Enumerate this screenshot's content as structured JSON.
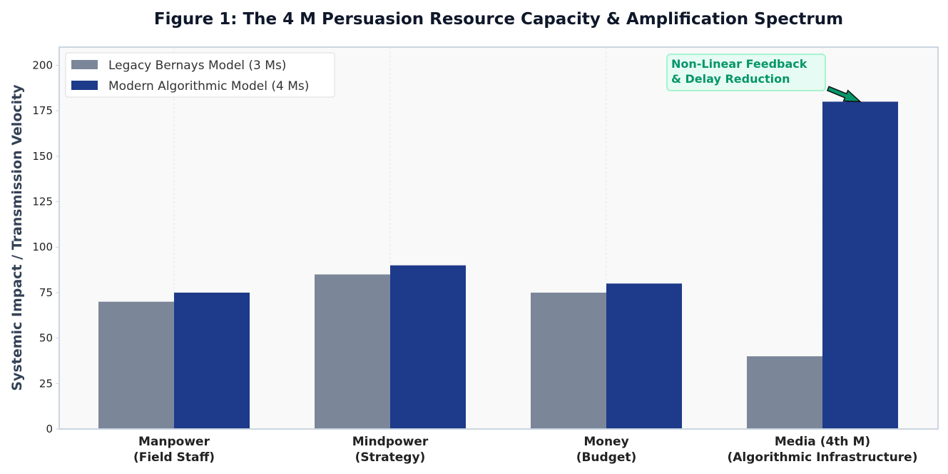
{
  "chart_data": {
    "type": "bar",
    "title": "Figure 1: The 4 M Persuasion Resource Capacity & Amplification Spectrum",
    "xlabel": "",
    "ylabel": "Systemic Impact / Transmission Velocity",
    "categories": [
      [
        "Manpower",
        "(Field Staff)"
      ],
      [
        "Mindpower",
        "(Strategy)"
      ],
      [
        "Money",
        "(Budget)"
      ],
      [
        "Media (4th M)",
        "(Algorithmic Infrastructure)"
      ]
    ],
    "series": [
      {
        "name": "Legacy Bernays Model (3 Ms)",
        "values": [
          70,
          85,
          75,
          40
        ],
        "color": "#7b8799"
      },
      {
        "name": "Modern Algorithmic Model (4 Ms)",
        "values": [
          75,
          90,
          80,
          180
        ],
        "color": "#1e3a8a"
      }
    ],
    "ylim": [
      0,
      210
    ],
    "yticks": [
      0,
      25,
      50,
      75,
      100,
      125,
      150,
      175,
      200
    ],
    "grid": "vertical-dashed",
    "legend_position": "top-left",
    "annotation": {
      "lines": [
        "Non-Linear Feedback",
        "& Delay Reduction"
      ],
      "target_category": 3,
      "target_series": 1,
      "color": "#059669",
      "box_fill": "#e6fbf3",
      "box_border": "#a7f3d0"
    },
    "colors": {
      "plot_bg": "#f9f9f9",
      "frame": "#cbd5e1"
    }
  }
}
